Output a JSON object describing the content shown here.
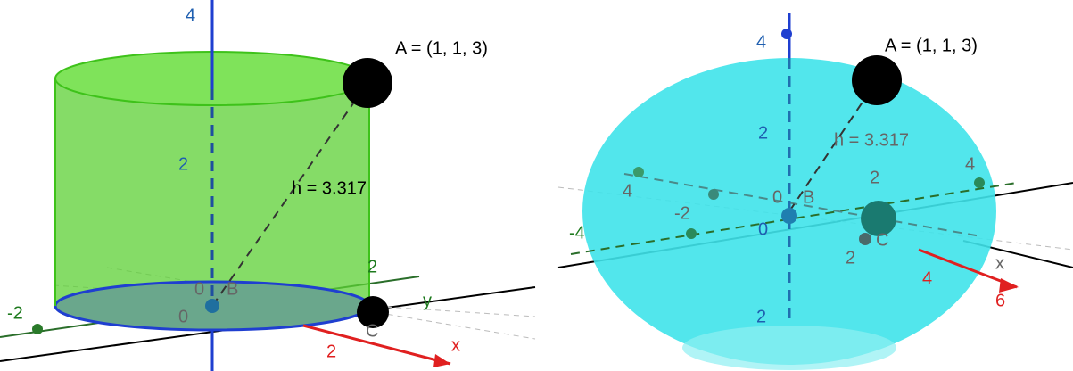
{
  "left_view": {
    "labels": [
      "4",
      "A = (1, 1, 3)",
      "2",
      "h = 3.317",
      "2",
      "0",
      "B",
      "y",
      "-2",
      "0",
      "C",
      "2",
      "x"
    ]
  },
  "right_view": {
    "labels": [
      "4",
      "A = (1, 1, 3)",
      "2",
      "h = 3.317",
      "4",
      "4",
      "2",
      "-2",
      "0",
      "B",
      "-4",
      "0",
      "C",
      "2",
      "x",
      "4",
      "6",
      "2"
    ]
  }
}
